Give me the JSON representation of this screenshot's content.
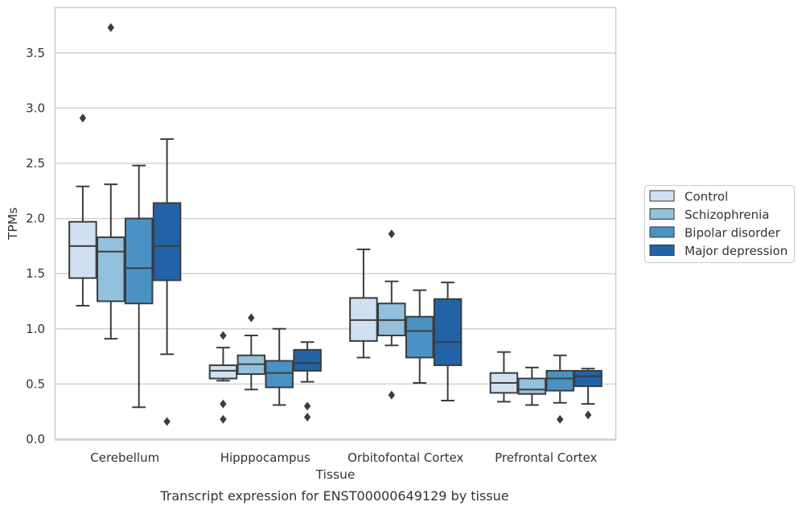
{
  "caption": "Transcript expression for ENST00000649129 by tissue",
  "colors": {
    "box_fills": [
      "#d0e0f0",
      "#93c0dc",
      "#4a92c4",
      "#2163a6"
    ],
    "line": "#3d3d3d",
    "grid": "#cccccc",
    "frame": "#cccccc",
    "background": "#ffffff"
  },
  "chart_data": {
    "type": "box",
    "title": "",
    "xlabel": "Tissue",
    "ylabel": "TPMs",
    "ylim": [
      0,
      3.9
    ],
    "yticks": [
      "0.0",
      "0.5",
      "1.0",
      "1.5",
      "2.0",
      "2.5",
      "3.0",
      "3.5"
    ],
    "categories": [
      "Cerebellum",
      "Hipppocampus",
      "Orbitofontal Cortex",
      "Prefrontal Cortex"
    ],
    "grid": "horizontal",
    "legend_position": "outside-right",
    "series": [
      {
        "name": "Control",
        "boxes": [
          {
            "whisker_low": 1.21,
            "q1": 1.46,
            "median": 1.75,
            "q3": 1.97,
            "whisker_high": 2.29,
            "outliers": [
              2.91
            ]
          },
          {
            "whisker_low": 0.53,
            "q1": 0.55,
            "median": 0.62,
            "q3": 0.67,
            "whisker_high": 0.83,
            "outliers": [
              0.94,
              0.32,
              0.18
            ]
          },
          {
            "whisker_low": 0.74,
            "q1": 0.89,
            "median": 1.08,
            "q3": 1.28,
            "whisker_high": 1.72,
            "outliers": []
          },
          {
            "whisker_low": 0.34,
            "q1": 0.42,
            "median": 0.51,
            "q3": 0.6,
            "whisker_high": 0.79,
            "outliers": []
          }
        ]
      },
      {
        "name": "Schizophrenia",
        "boxes": [
          {
            "whisker_low": 0.91,
            "q1": 1.25,
            "median": 1.7,
            "q3": 1.83,
            "whisker_high": 2.31,
            "outliers": [
              3.73
            ]
          },
          {
            "whisker_low": 0.45,
            "q1": 0.59,
            "median": 0.68,
            "q3": 0.76,
            "whisker_high": 0.94,
            "outliers": [
              1.1
            ]
          },
          {
            "whisker_low": 0.85,
            "q1": 0.94,
            "median": 1.08,
            "q3": 1.23,
            "whisker_high": 1.43,
            "outliers": [
              1.86,
              0.4
            ]
          },
          {
            "whisker_low": 0.31,
            "q1": 0.41,
            "median": 0.45,
            "q3": 0.55,
            "whisker_high": 0.65,
            "outliers": []
          }
        ]
      },
      {
        "name": "Bipolar disorder",
        "boxes": [
          {
            "whisker_low": 0.29,
            "q1": 1.23,
            "median": 1.55,
            "q3": 2.0,
            "whisker_high": 2.48,
            "outliers": []
          },
          {
            "whisker_low": 0.31,
            "q1": 0.47,
            "median": 0.6,
            "q3": 0.71,
            "whisker_high": 1.0,
            "outliers": []
          },
          {
            "whisker_low": 0.51,
            "q1": 0.74,
            "median": 0.98,
            "q3": 1.11,
            "whisker_high": 1.35,
            "outliers": []
          },
          {
            "whisker_low": 0.33,
            "q1": 0.44,
            "median": 0.55,
            "q3": 0.62,
            "whisker_high": 0.76,
            "outliers": [
              0.18
            ]
          }
        ]
      },
      {
        "name": "Major depression",
        "boxes": [
          {
            "whisker_low": 0.77,
            "q1": 1.44,
            "median": 1.75,
            "q3": 2.14,
            "whisker_high": 2.72,
            "outliers": [
              0.16
            ]
          },
          {
            "whisker_low": 0.52,
            "q1": 0.62,
            "median": 0.69,
            "q3": 0.81,
            "whisker_high": 0.88,
            "outliers": [
              0.3,
              0.2
            ]
          },
          {
            "whisker_low": 0.35,
            "q1": 0.67,
            "median": 0.88,
            "q3": 1.27,
            "whisker_high": 1.42,
            "outliers": []
          },
          {
            "whisker_low": 0.32,
            "q1": 0.48,
            "median": 0.57,
            "q3": 0.62,
            "whisker_high": 0.64,
            "outliers": [
              0.22
            ]
          }
        ]
      }
    ]
  }
}
